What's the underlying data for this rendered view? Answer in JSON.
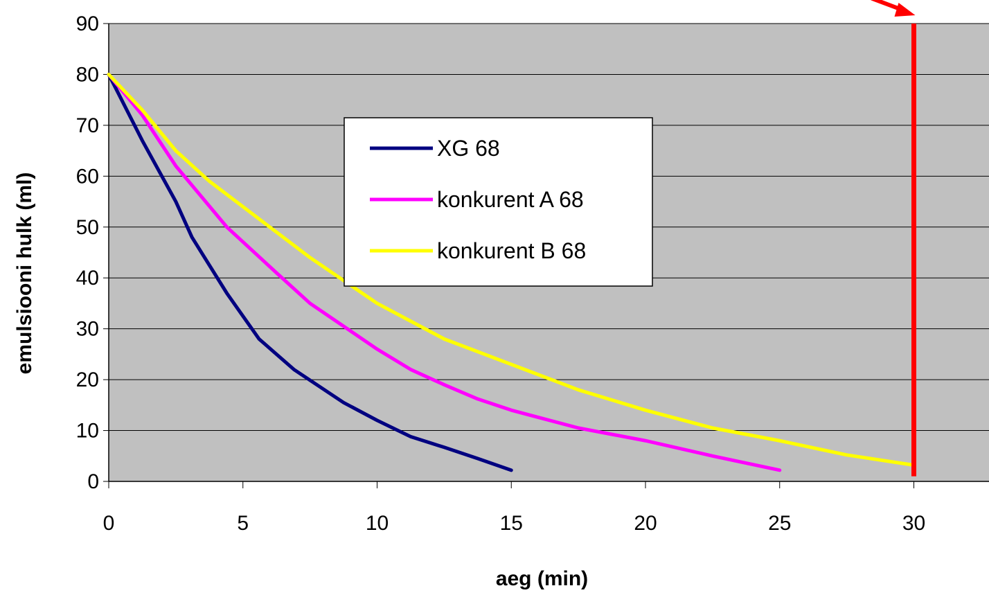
{
  "chart_data": {
    "type": "line",
    "title": "",
    "xlabel": "aeg (min)",
    "ylabel": "emulsiooni hulk (ml)",
    "xlim": [
      0,
      32.8
    ],
    "ylim": [
      0,
      90
    ],
    "x_ticks": [
      0,
      5,
      10,
      15,
      20,
      25,
      30
    ],
    "y_ticks": [
      0,
      10,
      20,
      30,
      40,
      50,
      60,
      70,
      80,
      90
    ],
    "grid": "horizontal",
    "legend_position": "center-left",
    "plot_background": "#c0c0c0",
    "series": [
      {
        "name": "XG 68",
        "color": "#000080",
        "x": [
          0,
          1.25,
          2.5,
          3.1,
          4.4,
          5.6,
          6.9,
          8.75,
          10,
          11.25,
          12.5,
          13.75,
          15
        ],
        "y": [
          80,
          67,
          55,
          48,
          37,
          28,
          22,
          15.5,
          12,
          8.8,
          6.7,
          4.5,
          2.2
        ]
      },
      {
        "name": "konkurent A 68",
        "color": "#ff00ff",
        "x": [
          0,
          1.25,
          2.5,
          4.4,
          6.25,
          7.5,
          8.75,
          10,
          11.25,
          12.5,
          13.75,
          15,
          17.5,
          20,
          22.5,
          25
        ],
        "y": [
          80,
          72,
          62,
          50,
          41,
          35,
          30.5,
          26,
          22,
          19,
          16.2,
          14,
          10.5,
          8,
          5,
          2.2
        ]
      },
      {
        "name": "konkurent B 68",
        "color": "#ffff00",
        "x": [
          0,
          1.25,
          2.5,
          3.75,
          5,
          6.25,
          7.5,
          10,
          12.5,
          15,
          17.5,
          20,
          22.5,
          25,
          27.5,
          30
        ],
        "y": [
          80,
          73,
          65,
          59,
          54,
          49,
          44,
          35,
          28,
          23,
          18,
          14,
          10.5,
          8,
          5.2,
          3.2
        ]
      }
    ],
    "reference_line": {
      "x": 30,
      "y_from": 1,
      "y_to": 90,
      "color": "#ff0000"
    },
    "arrow_color": "#ff0000"
  }
}
